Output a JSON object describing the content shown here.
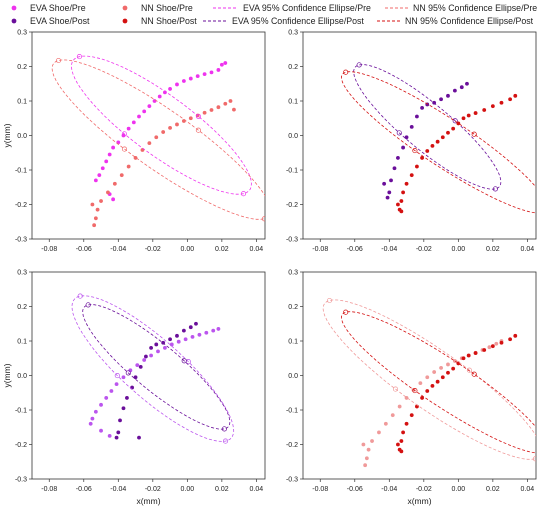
{
  "legend": {
    "eva_pre": "EVA Shoe/Pre",
    "nn_pre": "NN Shoe/Pre",
    "eva_ell_pre": "EVA 95% Confidence Ellipse/Pre",
    "nn_ell_pre": "NN 95% Confidence Ellipse/Pre",
    "eva_post": "EVA Shoe/Post",
    "nn_post": "NN Shoe/Post",
    "eva_ell_post": "EVA 95% Confidence Ellipse/Post",
    "nn_ell_post": "NN 95% Confidence Ellipse/Post"
  },
  "colors": {
    "eva_pre": "#ee33ee",
    "eva_post": "#6a0f9a",
    "nn_pre": "#f06a6a",
    "nn_post": "#d41111",
    "eva_pre_light": "#bb55ee",
    "nn_pre_light": "#f09a9a"
  },
  "axes": {
    "xlabel": "x(mm)",
    "ylabel": "y(mm)",
    "xticks": [
      -0.08,
      -0.06,
      -0.04,
      -0.02,
      0.0,
      0.02,
      0.04
    ],
    "xtick_labels": [
      "-0.08",
      "-0.06",
      "-0.04",
      "-0.02",
      "0.00",
      "0.02",
      "0.04"
    ],
    "yticks": [
      -0.3,
      -0.2,
      -0.1,
      0.0,
      0.1,
      0.2,
      0.3
    ],
    "ytick_labels": [
      "-0.3",
      "-0.2",
      "-0.1",
      "0.0",
      "0.1",
      "0.2",
      "0.3"
    ]
  },
  "chart_data": [
    {
      "type": "scatter",
      "xlim": [
        -0.09,
        0.045
      ],
      "ylim": [
        -0.3,
        0.3
      ],
      "series": [
        {
          "name": "EVA Shoe/Pre",
          "color": "#ee33ee",
          "x": [
            -0.053,
            -0.051,
            -0.049,
            -0.047,
            -0.045,
            -0.043,
            -0.04,
            -0.037,
            -0.034,
            -0.031,
            -0.028,
            -0.025,
            -0.022,
            -0.019,
            -0.016,
            -0.013,
            -0.01,
            -0.006,
            -0.002,
            0.002,
            0.006,
            0.01,
            0.014,
            0.018,
            0.02,
            0.022,
            -0.045,
            -0.043
          ],
          "y": [
            -0.13,
            -0.115,
            -0.095,
            -0.075,
            -0.055,
            -0.035,
            -0.02,
            0.0,
            0.02,
            0.038,
            0.055,
            0.07,
            0.085,
            0.1,
            0.113,
            0.125,
            0.135,
            0.148,
            0.158,
            0.165,
            0.172,
            0.178,
            0.183,
            0.19,
            0.205,
            0.21,
            -0.17,
            -0.185
          ]
        },
        {
          "name": "NN Shoe/Pre",
          "color": "#f06a6a",
          "x": [
            -0.053,
            -0.052,
            -0.05,
            -0.046,
            -0.042,
            -0.038,
            -0.034,
            -0.03,
            -0.026,
            -0.022,
            -0.018,
            -0.014,
            -0.01,
            -0.006,
            -0.002,
            0.002,
            0.006,
            0.01,
            0.014,
            0.018,
            0.022,
            0.025,
            0.027,
            -0.055,
            -0.054
          ],
          "y": [
            -0.24,
            -0.215,
            -0.19,
            -0.165,
            -0.14,
            -0.115,
            -0.09,
            -0.065,
            -0.042,
            -0.022,
            -0.005,
            0.01,
            0.022,
            0.032,
            0.042,
            0.05,
            0.058,
            0.066,
            0.074,
            0.082,
            0.092,
            0.1,
            0.075,
            -0.2,
            -0.26
          ]
        },
        {
          "name": "EVA 95% Confidence Ellipse/Pre",
          "kind": "ellipse",
          "color": "#ee33ee",
          "cx": -0.015,
          "cy": 0.03,
          "rx": 0.054,
          "ry": 0.225,
          "tilt_deg": 28
        },
        {
          "name": "NN 95% Confidence Ellipse/Pre",
          "kind": "ellipse",
          "color": "#f06a6a",
          "cx": -0.015,
          "cy": -0.012,
          "rx": 0.055,
          "ry": 0.265,
          "tilt_deg": 30
        }
      ]
    },
    {
      "type": "scatter",
      "xlim": [
        -0.09,
        0.045
      ],
      "ylim": [
        -0.3,
        0.3
      ],
      "series": [
        {
          "name": "EVA Shoe/Post",
          "color": "#6a0f9a",
          "x": [
            -0.04,
            -0.039,
            -0.037,
            -0.035,
            -0.032,
            -0.03,
            -0.027,
            -0.024,
            -0.021,
            -0.018,
            -0.014,
            -0.01,
            -0.006,
            -0.002,
            0.002,
            0.005,
            -0.041,
            -0.043
          ],
          "y": [
            -0.165,
            -0.13,
            -0.095,
            -0.065,
            -0.035,
            -0.005,
            0.025,
            0.055,
            0.08,
            0.09,
            0.095,
            0.105,
            0.115,
            0.13,
            0.14,
            0.15,
            -0.18,
            -0.14
          ]
        },
        {
          "name": "EVA 95% Confidence Ellipse/Post",
          "kind": "ellipse",
          "color": "#6a0f9a",
          "cx": -0.018,
          "cy": 0.025,
          "rx": 0.04,
          "ry": 0.2,
          "tilt_deg": 26
        },
        {
          "name": "NN Shoe/Post",
          "color": "#d41111",
          "x": [
            -0.034,
            -0.033,
            -0.032,
            -0.03,
            -0.027,
            -0.024,
            -0.021,
            -0.018,
            -0.015,
            -0.012,
            -0.009,
            -0.006,
            -0.003,
            0.0,
            0.003,
            0.006,
            0.01,
            0.015,
            0.02,
            0.025,
            0.03,
            0.033,
            -0.035,
            -0.033
          ],
          "y": [
            -0.215,
            -0.19,
            -0.165,
            -0.14,
            -0.115,
            -0.09,
            -0.065,
            -0.045,
            -0.03,
            -0.018,
            -0.005,
            0.008,
            0.02,
            0.035,
            0.05,
            0.058,
            0.065,
            0.074,
            0.085,
            0.095,
            0.105,
            0.115,
            -0.2,
            -0.22
          ]
        },
        {
          "name": "NN 95% Confidence Ellipse/Post",
          "kind": "ellipse",
          "color": "#d41111",
          "cx": -0.008,
          "cy": -0.02,
          "rx": 0.045,
          "ry": 0.24,
          "tilt_deg": 32
        }
      ]
    },
    {
      "type": "scatter",
      "xlim": [
        -0.09,
        0.045
      ],
      "ylim": [
        -0.3,
        0.3
      ],
      "series": [
        {
          "name": "EVA Shoe/Pre",
          "color": "#bb55ee",
          "x": [
            -0.056,
            -0.055,
            -0.053,
            -0.05,
            -0.047,
            -0.044,
            -0.041,
            -0.037,
            -0.033,
            -0.029,
            -0.025,
            -0.021,
            -0.017,
            -0.013,
            -0.009,
            -0.005,
            -0.001,
            0.003,
            0.007,
            0.011,
            0.015,
            0.018,
            -0.05,
            -0.045
          ],
          "y": [
            -0.14,
            -0.125,
            -0.105,
            -0.085,
            -0.065,
            -0.045,
            -0.025,
            -0.005,
            0.015,
            0.03,
            0.045,
            0.058,
            0.07,
            0.08,
            0.09,
            0.098,
            0.105,
            0.112,
            0.118,
            0.124,
            0.13,
            0.135,
            -0.16,
            -0.175
          ]
        },
        {
          "name": "EVA Shoe/Post",
          "color": "#6a0f9a",
          "x": [
            -0.04,
            -0.039,
            -0.037,
            -0.035,
            -0.032,
            -0.03,
            -0.027,
            -0.024,
            -0.021,
            -0.018,
            -0.014,
            -0.01,
            -0.006,
            -0.002,
            0.002,
            0.005,
            -0.041,
            -0.028
          ],
          "y": [
            -0.165,
            -0.13,
            -0.095,
            -0.065,
            -0.035,
            -0.005,
            0.025,
            0.055,
            0.08,
            0.09,
            0.095,
            0.105,
            0.115,
            0.13,
            0.14,
            0.15,
            -0.18,
            -0.18
          ]
        },
        {
          "name": "EVA 95% Confidence Ellipse/Pre",
          "kind": "ellipse",
          "color": "#bb55ee",
          "cx": -0.02,
          "cy": 0.02,
          "rx": 0.05,
          "ry": 0.23,
          "tilt_deg": 24
        },
        {
          "name": "EVA 95% Confidence Ellipse/Post",
          "kind": "ellipse",
          "color": "#6a0f9a",
          "cx": -0.018,
          "cy": 0.025,
          "rx": 0.04,
          "ry": 0.2,
          "tilt_deg": 26
        }
      ]
    },
    {
      "type": "scatter",
      "xlim": [
        -0.09,
        0.045
      ],
      "ylim": [
        -0.3,
        0.3
      ],
      "series": [
        {
          "name": "NN Shoe/Pre",
          "color": "#f09a9a",
          "x": [
            -0.053,
            -0.052,
            -0.05,
            -0.046,
            -0.042,
            -0.038,
            -0.034,
            -0.03,
            -0.026,
            -0.022,
            -0.018,
            -0.014,
            -0.01,
            -0.006,
            -0.002,
            0.002,
            0.006,
            0.01,
            0.014,
            0.018,
            0.022,
            0.025,
            -0.055,
            -0.054
          ],
          "y": [
            -0.24,
            -0.215,
            -0.19,
            -0.165,
            -0.14,
            -0.115,
            -0.09,
            -0.065,
            -0.042,
            -0.022,
            -0.005,
            0.01,
            0.022,
            0.032,
            0.042,
            0.05,
            0.058,
            0.066,
            0.074,
            0.082,
            0.092,
            0.1,
            -0.2,
            -0.26
          ]
        },
        {
          "name": "NN Shoe/Post",
          "color": "#d41111",
          "x": [
            -0.034,
            -0.033,
            -0.032,
            -0.03,
            -0.027,
            -0.024,
            -0.021,
            -0.018,
            -0.015,
            -0.012,
            -0.009,
            -0.006,
            -0.003,
            0.0,
            0.003,
            0.006,
            0.01,
            0.015,
            0.02,
            0.025,
            0.03,
            0.033,
            -0.035,
            -0.033
          ],
          "y": [
            -0.215,
            -0.19,
            -0.165,
            -0.14,
            -0.115,
            -0.09,
            -0.065,
            -0.045,
            -0.03,
            -0.018,
            -0.005,
            0.008,
            0.02,
            0.035,
            0.05,
            0.058,
            0.065,
            0.074,
            0.085,
            0.095,
            0.105,
            0.115,
            -0.2,
            -0.22
          ]
        },
        {
          "name": "NN 95% Confidence Ellipse/Pre",
          "kind": "ellipse",
          "color": "#f09a9a",
          "cx": -0.015,
          "cy": -0.012,
          "rx": 0.055,
          "ry": 0.265,
          "tilt_deg": 30
        },
        {
          "name": "NN 95% Confidence Ellipse/Post",
          "kind": "ellipse",
          "color": "#d41111",
          "cx": -0.008,
          "cy": -0.02,
          "rx": 0.045,
          "ry": 0.24,
          "tilt_deg": 32
        }
      ]
    }
  ]
}
